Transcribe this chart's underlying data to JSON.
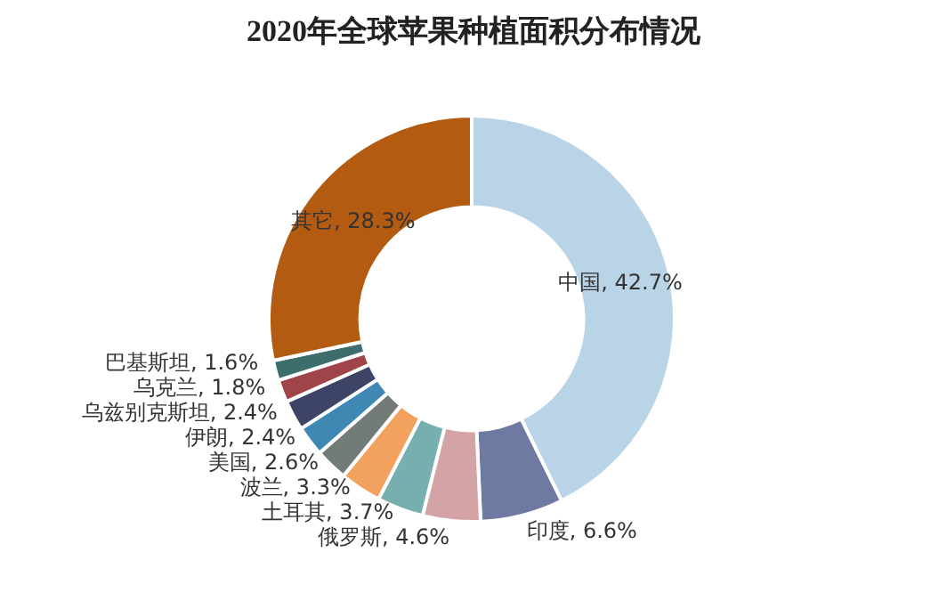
{
  "chart_data": {
    "type": "donut",
    "title": "2020年全球苹果种植面积分布情况",
    "categories": [
      "中国",
      "印度",
      "俄罗斯",
      "土耳其",
      "波兰",
      "美国",
      "伊朗",
      "乌兹别克斯坦",
      "乌克兰",
      "巴基斯坦",
      "其它"
    ],
    "values": [
      42.7,
      6.6,
      4.6,
      3.7,
      3.3,
      2.6,
      2.4,
      2.4,
      1.8,
      1.6,
      28.3
    ],
    "colors": [
      "#b8d4e6",
      "#6f7aa3",
      "#d4a3a5",
      "#76afae",
      "#f2a15e",
      "#737b78",
      "#3f88b4",
      "#3d4466",
      "#a04449",
      "#3e6d6e",
      "#b45b12"
    ],
    "value_labels": [
      ", 42.7%",
      ", 6.6%",
      ", 4.6%",
      ", 3.7%",
      ", 3.3%",
      ", 2.6%",
      ", 2.4%",
      ", 2.4%",
      ", 1.8%",
      ", 1.6%",
      ", 28.3%"
    ],
    "legend": false
  }
}
